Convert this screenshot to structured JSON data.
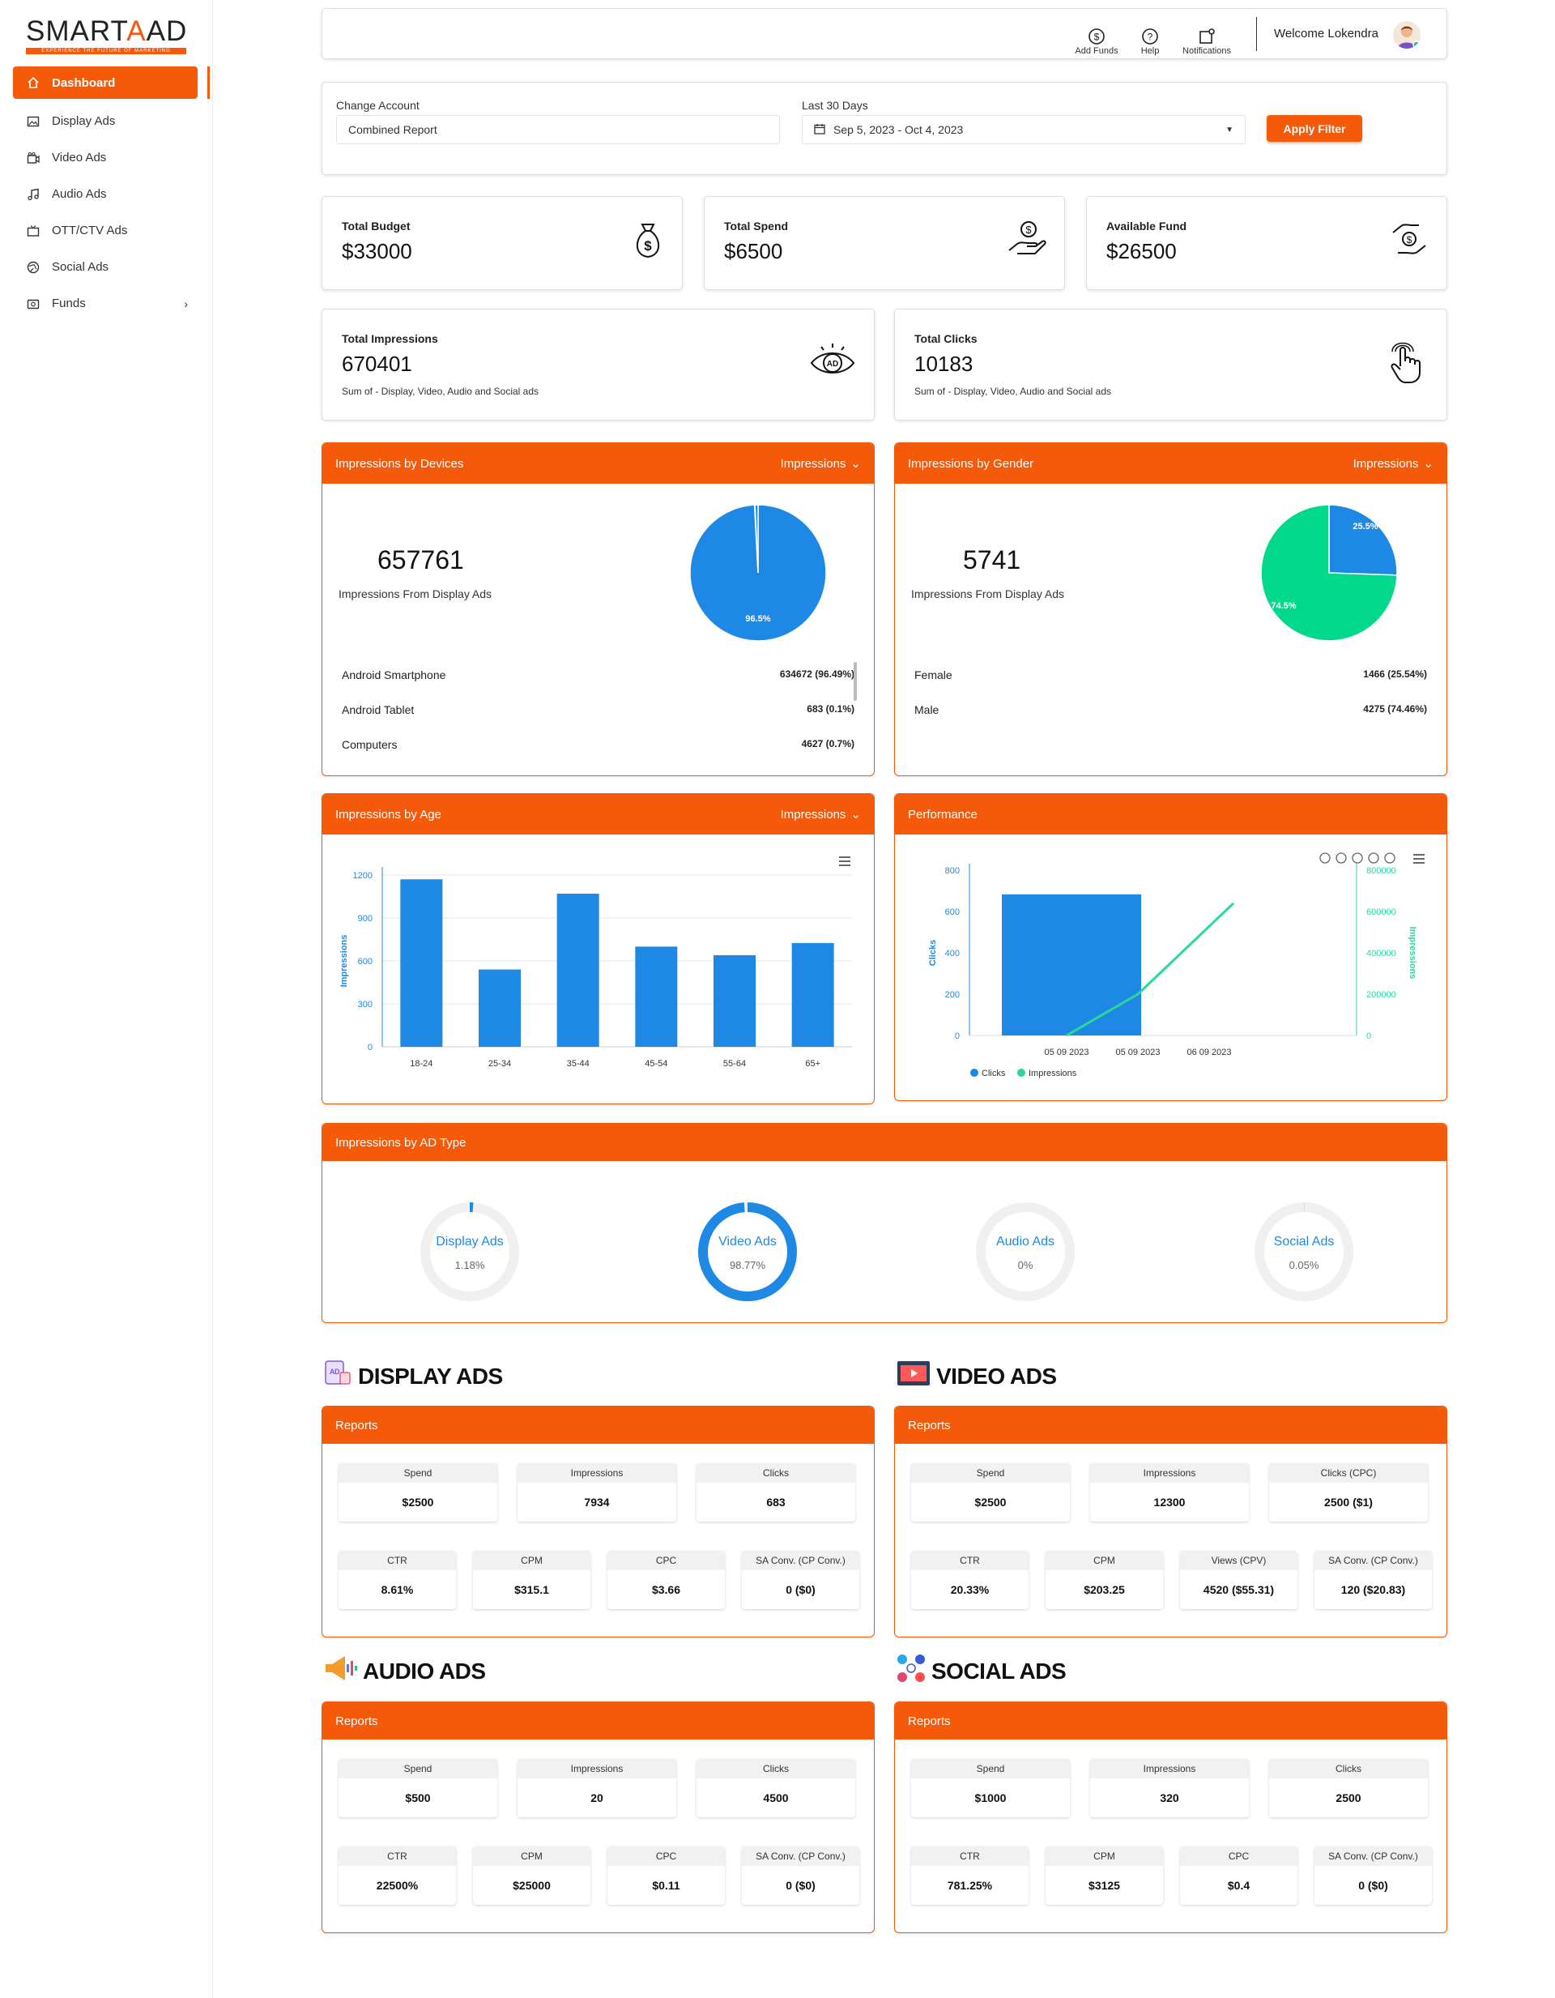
{
  "brand": {
    "name_part1": "SMART",
    "name_part2": "A",
    "name_part3": "AD",
    "tagline": "EXPERIENCE THE FUTURE OF MARKETING"
  },
  "sidebar": {
    "items": [
      {
        "label": "Dashboard",
        "icon": "home-icon",
        "active": true
      },
      {
        "label": "Display Ads",
        "icon": "image-icon"
      },
      {
        "label": "Video Ads",
        "icon": "video-icon"
      },
      {
        "label": "Audio Ads",
        "icon": "music-icon"
      },
      {
        "label": "OTT/CTV Ads",
        "icon": "tv-icon"
      },
      {
        "label": "Social Ads",
        "icon": "globe-icon"
      },
      {
        "label": "Funds",
        "icon": "wallet-icon",
        "has_chevron": true
      }
    ]
  },
  "topbar": {
    "add_funds": "Add Funds",
    "help": "Help",
    "notifications": "Notifications",
    "welcome": "Welcome Lokendra"
  },
  "filter": {
    "account_label": "Change Account",
    "account_value": "Combined Report",
    "range_label": "Last 30 Days",
    "range_value": "Sep 5, 2023 - Oct 4, 2023",
    "apply": "Apply Filter"
  },
  "stats": {
    "budget": {
      "title": "Total Budget",
      "value": "$33000"
    },
    "spend": {
      "title": "Total Spend",
      "value": "$6500"
    },
    "fund": {
      "title": "Available Fund",
      "value": "$26500"
    },
    "impressions": {
      "title": "Total Impressions",
      "value": "670401",
      "sub": "Sum of - Display, Video, Audio and Social ads"
    },
    "clicks": {
      "title": "Total Clicks",
      "value": "10183",
      "sub": "Sum of - Display, Video, Audio and Social ads"
    }
  },
  "devices": {
    "title": "Impressions by Devices",
    "dropdown": "Impressions",
    "big": "657761",
    "big_label": "Impressions From Display Ads",
    "rows": [
      {
        "name": "Android Smartphone",
        "value": "634672 (96.49%)"
      },
      {
        "name": "Android Tablet",
        "value": "683 (0.1%)"
      },
      {
        "name": "Computers",
        "value": "4627 (0.7%)"
      }
    ]
  },
  "gender": {
    "title": "Impressions by Gender",
    "dropdown": "Impressions",
    "big": "5741",
    "big_label": "Impressions From Display Ads",
    "rows": [
      {
        "name": "Female",
        "value": "1466 (25.54%)"
      },
      {
        "name": "Male",
        "value": "4275 (74.46%)"
      }
    ]
  },
  "age": {
    "title": "Impressions by Age",
    "dropdown": "Impressions"
  },
  "performance": {
    "title": "Performance"
  },
  "adtype": {
    "title": "Impressions by AD Type",
    "items": [
      {
        "name": "Display Ads",
        "pct_label": "1.18%",
        "pct": 1.18
      },
      {
        "name": "Video Ads",
        "pct_label": "98.77%",
        "pct": 98.77
      },
      {
        "name": "Audio Ads",
        "pct_label": "0%",
        "pct": 0
      },
      {
        "name": "Social Ads",
        "pct_label": "0.05%",
        "pct": 0.05
      }
    ]
  },
  "chart_data": [
    {
      "type": "pie",
      "title": "Impressions by Devices",
      "categories": [
        "Android Smartphone",
        "Android Tablet",
        "Computers"
      ],
      "values": [
        634672,
        683,
        4627
      ],
      "slice_labels": [
        "96.5%"
      ],
      "colors": [
        "#1e88e5",
        "#1e88e5",
        "#1e88e5"
      ]
    },
    {
      "type": "pie",
      "title": "Impressions by Gender",
      "categories": [
        "Female",
        "Male"
      ],
      "values": [
        1466,
        4275
      ],
      "slice_labels": [
        "25.5%",
        "74.5%"
      ],
      "colors": [
        "#1e88e5",
        "#00d98b"
      ]
    },
    {
      "type": "bar",
      "title": "Impressions by Age",
      "categories": [
        "18-24",
        "25-34",
        "35-44",
        "45-54",
        "55-64",
        "65+"
      ],
      "values": [
        1170,
        540,
        1070,
        700,
        640,
        725
      ],
      "ylabel": "Impressions",
      "ylim": [
        0,
        1200
      ],
      "yticks": [
        "0",
        "300",
        "600",
        "900",
        "1200"
      ],
      "color": "#1e88e5",
      "grid": true
    },
    {
      "type": "bar",
      "title": "Performance",
      "categories": [
        "05 09 2023",
        "05 09 2023",
        "06 09 2023"
      ],
      "series": [
        {
          "name": "Clicks",
          "type": "bar",
          "axis": "left",
          "values": [
            683,
            null,
            null
          ],
          "color": "#1e88e5"
        },
        {
          "name": "Impressions",
          "type": "line",
          "axis": "right",
          "values": [
            0,
            200000,
            640000
          ],
          "color": "#2ad99a"
        }
      ],
      "ylabel": "Clicks",
      "y2label": "Impressions",
      "ylim": [
        0,
        800
      ],
      "y2lim": [
        0,
        800000
      ],
      "yticks": [
        "0",
        "200",
        "400",
        "600",
        "800"
      ],
      "y2ticks": [
        "0",
        "200000",
        "400000",
        "600000",
        "800000"
      ],
      "legend": "bottom-left"
    }
  ],
  "sections": [
    {
      "title": "DISPLAY ADS",
      "icon": "display-ads-icon",
      "reports": "Reports",
      "row1": [
        {
          "h": "Spend",
          "v": "$2500"
        },
        {
          "h": "Impressions",
          "v": "7934"
        },
        {
          "h": "Clicks",
          "v": "683"
        }
      ],
      "row2": [
        {
          "h": "CTR",
          "v": "8.61%"
        },
        {
          "h": "CPM",
          "v": "$315.1"
        },
        {
          "h": "CPC",
          "v": "$3.66"
        },
        {
          "h": "SA Conv. (CP Conv.)",
          "v": "0 ($0)"
        }
      ]
    },
    {
      "title": "VIDEO ADS",
      "icon": "video-ads-icon",
      "reports": "Reports",
      "row1": [
        {
          "h": "Spend",
          "v": "$2500"
        },
        {
          "h": "Impressions",
          "v": "12300"
        },
        {
          "h": "Clicks (CPC)",
          "v": "2500 ($1)"
        }
      ],
      "row2": [
        {
          "h": "CTR",
          "v": "20.33%"
        },
        {
          "h": "CPM",
          "v": "$203.25"
        },
        {
          "h": "Views (CPV)",
          "v": "4520 ($55.31)"
        },
        {
          "h": "SA Conv. (CP Conv.)",
          "v": "120 ($20.83)"
        }
      ]
    },
    {
      "title": "AUDIO ADS",
      "icon": "audio-ads-icon",
      "reports": "Reports",
      "row1": [
        {
          "h": "Spend",
          "v": "$500"
        },
        {
          "h": "Impressions",
          "v": "20"
        },
        {
          "h": "Clicks",
          "v": "4500"
        }
      ],
      "row2": [
        {
          "h": "CTR",
          "v": "22500%"
        },
        {
          "h": "CPM",
          "v": "$25000"
        },
        {
          "h": "CPC",
          "v": "$0.11"
        },
        {
          "h": "SA Conv. (CP Conv.)",
          "v": "0 ($0)"
        }
      ]
    },
    {
      "title": "SOCIAL ADS",
      "icon": "social-ads-icon",
      "reports": "Reports",
      "row1": [
        {
          "h": "Spend",
          "v": "$1000"
        },
        {
          "h": "Impressions",
          "v": "320"
        },
        {
          "h": "Clicks",
          "v": "2500"
        }
      ],
      "row2": [
        {
          "h": "CTR",
          "v": "781.25%"
        },
        {
          "h": "CPM",
          "v": "$3125"
        },
        {
          "h": "CPC",
          "v": "$0.4"
        },
        {
          "h": "SA Conv. (CP Conv.)",
          "v": "0 ($0)"
        }
      ]
    }
  ]
}
